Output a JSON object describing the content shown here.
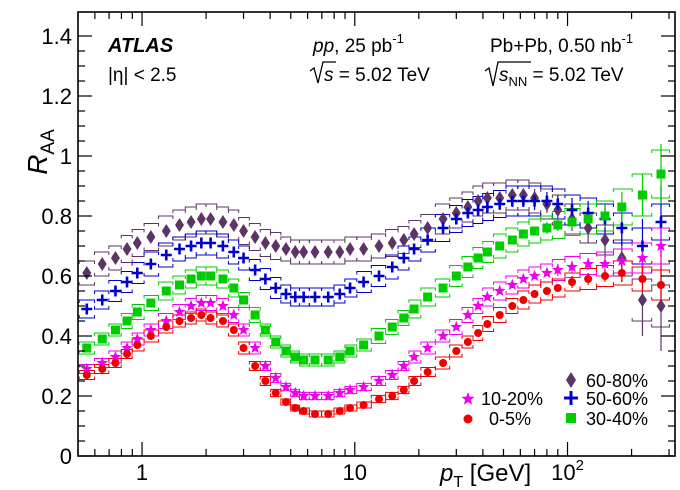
{
  "chart_data": {
    "type": "scatter",
    "title": "",
    "xlabel": "p_T [GeV]",
    "xlabel_main": "p",
    "xlabel_sub": "T",
    "xlabel_unit": " [GeV]",
    "ylabel": "R_AA",
    "ylabel_main": "R",
    "ylabel_sub": "AA",
    "x_scale": "log",
    "xlim": [
      0.5,
      320
    ],
    "ylim": [
      0,
      1.48
    ],
    "x_ticks": [
      {
        "value": 1,
        "label": "1"
      },
      {
        "value": 10,
        "label": "10"
      },
      {
        "value": 100,
        "label": "10",
        "sup": "2"
      }
    ],
    "y_ticks": [
      {
        "value": 0,
        "label": "0"
      },
      {
        "value": 0.2,
        "label": "0.2"
      },
      {
        "value": 0.4,
        "label": "0.4"
      },
      {
        "value": 0.6,
        "label": "0.6"
      },
      {
        "value": 0.8,
        "label": "0.8"
      },
      {
        "value": 1,
        "label": "1"
      },
      {
        "value": 1.2,
        "label": "1.2"
      },
      {
        "value": 1.4,
        "label": "1.4"
      }
    ],
    "grid": false,
    "legend_placement": "bottom-right",
    "annotations": {
      "experiment": "ATLAS",
      "eta_cut": "|η| < 2.5",
      "pp_lumi_it": "pp",
      "pp_lumi_rest": ", 25 pb",
      "pp_lumi_sup": "-1",
      "pp_sqrt_s": "s",
      "pp_energy": " = 5.02 TeV",
      "pbpb_lumi": "Pb+Pb, 0.50 nb",
      "pbpb_lumi_sup": "-1",
      "pbpb_sqrt_s": "s",
      "pbpb_sqrt_sub": "NN",
      "pbpb_energy": " = 5.02 TeV"
    },
    "series": [
      {
        "name": "60-80%",
        "marker": "diamond",
        "color": "#5c3566",
        "x": [
          0.55,
          0.65,
          0.75,
          0.85,
          0.95,
          1.1,
          1.3,
          1.5,
          1.7,
          1.9,
          2.1,
          2.4,
          2.7,
          3.0,
          3.4,
          3.8,
          4.25,
          4.75,
          5.25,
          5.75,
          6.5,
          7.5,
          8.5,
          9.5,
          11,
          13,
          15,
          17,
          19,
          22,
          26,
          30,
          34,
          38,
          42,
          48,
          55,
          62,
          70,
          80,
          90,
          105,
          125,
          150,
          180,
          225,
          275
        ],
        "y": [
          0.61,
          0.64,
          0.66,
          0.69,
          0.71,
          0.73,
          0.75,
          0.77,
          0.78,
          0.79,
          0.79,
          0.78,
          0.77,
          0.75,
          0.73,
          0.71,
          0.7,
          0.69,
          0.68,
          0.68,
          0.68,
          0.68,
          0.68,
          0.69,
          0.69,
          0.7,
          0.71,
          0.72,
          0.74,
          0.76,
          0.79,
          0.81,
          0.83,
          0.85,
          0.86,
          0.86,
          0.87,
          0.87,
          0.86,
          0.84,
          0.82,
          0.79,
          0.76,
          0.72,
          0.66,
          0.52,
          0.5
        ],
        "err_y": [
          0.01,
          0.01,
          0.01,
          0.01,
          0.01,
          0.01,
          0.01,
          0.01,
          0.01,
          0.01,
          0.01,
          0.01,
          0.01,
          0.01,
          0.01,
          0.01,
          0.01,
          0.01,
          0.01,
          0.01,
          0.01,
          0.01,
          0.01,
          0.01,
          0.01,
          0.01,
          0.01,
          0.01,
          0.01,
          0.01,
          0.01,
          0.01,
          0.01,
          0.01,
          0.02,
          0.02,
          0.02,
          0.02,
          0.03,
          0.03,
          0.03,
          0.04,
          0.05,
          0.06,
          0.08,
          0.12,
          0.15
        ],
        "syst_y": [
          0.04,
          0.04,
          0.04,
          0.045,
          0.045,
          0.045,
          0.05,
          0.05,
          0.05,
          0.05,
          0.05,
          0.05,
          0.05,
          0.045,
          0.045,
          0.045,
          0.045,
          0.04,
          0.04,
          0.04,
          0.04,
          0.04,
          0.04,
          0.04,
          0.04,
          0.04,
          0.045,
          0.045,
          0.045,
          0.045,
          0.05,
          0.05,
          0.05,
          0.05,
          0.05,
          0.05,
          0.05,
          0.05,
          0.05,
          0.05,
          0.05,
          0.05,
          0.05,
          0.05,
          0.06,
          0.07,
          0.07
        ]
      },
      {
        "name": "50-60%",
        "marker": "cross",
        "color": "#0000cc",
        "x": [
          0.55,
          0.65,
          0.75,
          0.85,
          0.95,
          1.1,
          1.3,
          1.5,
          1.7,
          1.9,
          2.1,
          2.4,
          2.7,
          3.0,
          3.4,
          3.8,
          4.25,
          4.75,
          5.25,
          5.75,
          6.5,
          7.5,
          8.5,
          9.5,
          11,
          13,
          15,
          17,
          19,
          22,
          26,
          30,
          34,
          38,
          42,
          48,
          55,
          62,
          70,
          80,
          90,
          105,
          125,
          150,
          180,
          225,
          275
        ],
        "y": [
          0.49,
          0.52,
          0.55,
          0.58,
          0.61,
          0.64,
          0.67,
          0.69,
          0.7,
          0.71,
          0.71,
          0.7,
          0.68,
          0.66,
          0.62,
          0.59,
          0.56,
          0.54,
          0.53,
          0.53,
          0.53,
          0.53,
          0.54,
          0.56,
          0.58,
          0.6,
          0.63,
          0.66,
          0.69,
          0.72,
          0.76,
          0.79,
          0.81,
          0.82,
          0.83,
          0.84,
          0.85,
          0.85,
          0.85,
          0.85,
          0.84,
          0.82,
          0.81,
          0.79,
          0.76,
          0.7,
          0.78
        ],
        "err_y": [
          0.01,
          0.01,
          0.01,
          0.01,
          0.01,
          0.01,
          0.01,
          0.01,
          0.01,
          0.01,
          0.01,
          0.01,
          0.01,
          0.01,
          0.01,
          0.01,
          0.01,
          0.01,
          0.01,
          0.01,
          0.01,
          0.01,
          0.01,
          0.01,
          0.01,
          0.01,
          0.01,
          0.01,
          0.01,
          0.01,
          0.01,
          0.01,
          0.01,
          0.02,
          0.02,
          0.02,
          0.02,
          0.02,
          0.03,
          0.03,
          0.03,
          0.04,
          0.04,
          0.05,
          0.06,
          0.09,
          0.12
        ],
        "syst_y": [
          0.03,
          0.03,
          0.035,
          0.035,
          0.035,
          0.04,
          0.04,
          0.04,
          0.04,
          0.04,
          0.04,
          0.04,
          0.04,
          0.04,
          0.035,
          0.035,
          0.035,
          0.03,
          0.03,
          0.03,
          0.03,
          0.03,
          0.03,
          0.03,
          0.035,
          0.035,
          0.04,
          0.04,
          0.04,
          0.04,
          0.045,
          0.045,
          0.045,
          0.045,
          0.045,
          0.045,
          0.05,
          0.05,
          0.05,
          0.05,
          0.05,
          0.05,
          0.05,
          0.05,
          0.05,
          0.06,
          0.06
        ]
      },
      {
        "name": "30-40%",
        "marker": "square",
        "color": "#00cc00",
        "x": [
          0.55,
          0.65,
          0.75,
          0.85,
          0.95,
          1.1,
          1.3,
          1.5,
          1.7,
          1.9,
          2.1,
          2.4,
          2.7,
          3.0,
          3.4,
          3.8,
          4.25,
          4.75,
          5.25,
          5.75,
          6.5,
          7.5,
          8.5,
          9.5,
          11,
          13,
          15,
          17,
          19,
          22,
          26,
          30,
          34,
          38,
          42,
          48,
          55,
          62,
          70,
          80,
          90,
          105,
          125,
          150,
          180,
          225,
          275
        ],
        "y": [
          0.36,
          0.39,
          0.42,
          0.45,
          0.48,
          0.51,
          0.55,
          0.57,
          0.59,
          0.6,
          0.6,
          0.59,
          0.56,
          0.52,
          0.47,
          0.42,
          0.38,
          0.35,
          0.33,
          0.32,
          0.32,
          0.32,
          0.33,
          0.35,
          0.37,
          0.4,
          0.43,
          0.46,
          0.49,
          0.53,
          0.56,
          0.6,
          0.63,
          0.66,
          0.68,
          0.7,
          0.72,
          0.74,
          0.75,
          0.76,
          0.77,
          0.78,
          0.79,
          0.8,
          0.83,
          0.87,
          0.94
        ],
        "err_y": [
          0.005,
          0.005,
          0.005,
          0.005,
          0.005,
          0.005,
          0.005,
          0.005,
          0.005,
          0.005,
          0.005,
          0.005,
          0.005,
          0.005,
          0.005,
          0.005,
          0.005,
          0.005,
          0.005,
          0.005,
          0.005,
          0.005,
          0.005,
          0.005,
          0.005,
          0.005,
          0.005,
          0.005,
          0.005,
          0.005,
          0.005,
          0.005,
          0.01,
          0.01,
          0.01,
          0.01,
          0.01,
          0.01,
          0.01,
          0.02,
          0.02,
          0.02,
          0.03,
          0.04,
          0.05,
          0.07,
          0.1
        ],
        "syst_y": [
          0.02,
          0.02,
          0.02,
          0.025,
          0.025,
          0.025,
          0.03,
          0.03,
          0.03,
          0.03,
          0.03,
          0.03,
          0.03,
          0.025,
          0.025,
          0.02,
          0.02,
          0.02,
          0.02,
          0.02,
          0.02,
          0.02,
          0.02,
          0.02,
          0.02,
          0.025,
          0.025,
          0.025,
          0.03,
          0.03,
          0.03,
          0.035,
          0.035,
          0.035,
          0.035,
          0.04,
          0.04,
          0.04,
          0.04,
          0.04,
          0.045,
          0.045,
          0.05,
          0.05,
          0.06,
          0.07,
          0.08
        ]
      },
      {
        "name": "10-20%",
        "marker": "star",
        "color": "#ee00ee",
        "x": [
          0.55,
          0.65,
          0.75,
          0.85,
          0.95,
          1.1,
          1.3,
          1.5,
          1.7,
          1.9,
          2.1,
          2.4,
          2.7,
          3.0,
          3.4,
          3.8,
          4.25,
          4.75,
          5.25,
          5.75,
          6.5,
          7.5,
          8.5,
          9.5,
          11,
          13,
          15,
          17,
          19,
          22,
          26,
          30,
          34,
          38,
          42,
          48,
          55,
          62,
          70,
          80,
          90,
          105,
          125,
          150,
          180,
          225,
          275
        ],
        "y": [
          0.29,
          0.31,
          0.33,
          0.36,
          0.39,
          0.42,
          0.45,
          0.48,
          0.5,
          0.51,
          0.51,
          0.5,
          0.47,
          0.42,
          0.36,
          0.3,
          0.26,
          0.23,
          0.21,
          0.2,
          0.2,
          0.2,
          0.21,
          0.22,
          0.23,
          0.25,
          0.27,
          0.3,
          0.33,
          0.36,
          0.4,
          0.43,
          0.47,
          0.5,
          0.53,
          0.55,
          0.57,
          0.59,
          0.6,
          0.61,
          0.62,
          0.63,
          0.64,
          0.64,
          0.65,
          0.66,
          0.7
        ],
        "err_y": [
          0.005,
          0.005,
          0.005,
          0.005,
          0.005,
          0.005,
          0.005,
          0.005,
          0.005,
          0.005,
          0.005,
          0.005,
          0.005,
          0.005,
          0.005,
          0.005,
          0.005,
          0.005,
          0.005,
          0.005,
          0.005,
          0.005,
          0.005,
          0.005,
          0.005,
          0.005,
          0.005,
          0.005,
          0.005,
          0.005,
          0.005,
          0.005,
          0.005,
          0.01,
          0.01,
          0.01,
          0.01,
          0.01,
          0.01,
          0.01,
          0.02,
          0.02,
          0.02,
          0.03,
          0.04,
          0.05,
          0.07
        ],
        "syst_y": [
          0.015,
          0.015,
          0.02,
          0.02,
          0.02,
          0.02,
          0.025,
          0.025,
          0.025,
          0.025,
          0.025,
          0.025,
          0.025,
          0.02,
          0.02,
          0.015,
          0.015,
          0.012,
          0.012,
          0.012,
          0.012,
          0.012,
          0.012,
          0.012,
          0.012,
          0.015,
          0.015,
          0.015,
          0.02,
          0.02,
          0.02,
          0.025,
          0.025,
          0.025,
          0.03,
          0.03,
          0.03,
          0.03,
          0.03,
          0.03,
          0.035,
          0.035,
          0.035,
          0.04,
          0.04,
          0.05,
          0.06
        ]
      },
      {
        "name": "0-5%",
        "marker": "circle",
        "color": "#ee0000",
        "x": [
          0.55,
          0.65,
          0.75,
          0.85,
          0.95,
          1.1,
          1.3,
          1.5,
          1.7,
          1.9,
          2.1,
          2.4,
          2.7,
          3.0,
          3.4,
          3.8,
          4.25,
          4.75,
          5.25,
          5.75,
          6.5,
          7.5,
          8.5,
          9.5,
          11,
          13,
          15,
          17,
          19,
          22,
          26,
          30,
          34,
          38,
          42,
          48,
          55,
          62,
          70,
          80,
          90,
          105,
          125,
          150,
          180,
          225,
          275
        ],
        "y": [
          0.27,
          0.29,
          0.31,
          0.34,
          0.37,
          0.4,
          0.43,
          0.45,
          0.46,
          0.47,
          0.46,
          0.45,
          0.42,
          0.36,
          0.3,
          0.25,
          0.21,
          0.18,
          0.16,
          0.15,
          0.14,
          0.14,
          0.15,
          0.16,
          0.17,
          0.19,
          0.2,
          0.22,
          0.25,
          0.28,
          0.31,
          0.35,
          0.38,
          0.41,
          0.44,
          0.47,
          0.5,
          0.52,
          0.54,
          0.55,
          0.56,
          0.58,
          0.59,
          0.6,
          0.61,
          0.59,
          0.57
        ],
        "err_y": [
          0.005,
          0.005,
          0.005,
          0.005,
          0.005,
          0.005,
          0.005,
          0.005,
          0.005,
          0.005,
          0.005,
          0.005,
          0.005,
          0.005,
          0.005,
          0.005,
          0.005,
          0.005,
          0.005,
          0.005,
          0.005,
          0.005,
          0.005,
          0.005,
          0.005,
          0.005,
          0.005,
          0.005,
          0.005,
          0.005,
          0.005,
          0.005,
          0.005,
          0.005,
          0.01,
          0.01,
          0.01,
          0.01,
          0.01,
          0.01,
          0.01,
          0.02,
          0.02,
          0.02,
          0.03,
          0.04,
          0.06
        ],
        "syst_y": [
          0.015,
          0.015,
          0.015,
          0.015,
          0.02,
          0.02,
          0.02,
          0.02,
          0.02,
          0.02,
          0.02,
          0.02,
          0.02,
          0.02,
          0.015,
          0.015,
          0.012,
          0.01,
          0.01,
          0.01,
          0.01,
          0.01,
          0.01,
          0.01,
          0.01,
          0.012,
          0.012,
          0.012,
          0.015,
          0.015,
          0.02,
          0.02,
          0.02,
          0.025,
          0.025,
          0.025,
          0.025,
          0.03,
          0.03,
          0.03,
          0.03,
          0.03,
          0.035,
          0.035,
          0.04,
          0.04,
          0.05
        ]
      }
    ]
  }
}
